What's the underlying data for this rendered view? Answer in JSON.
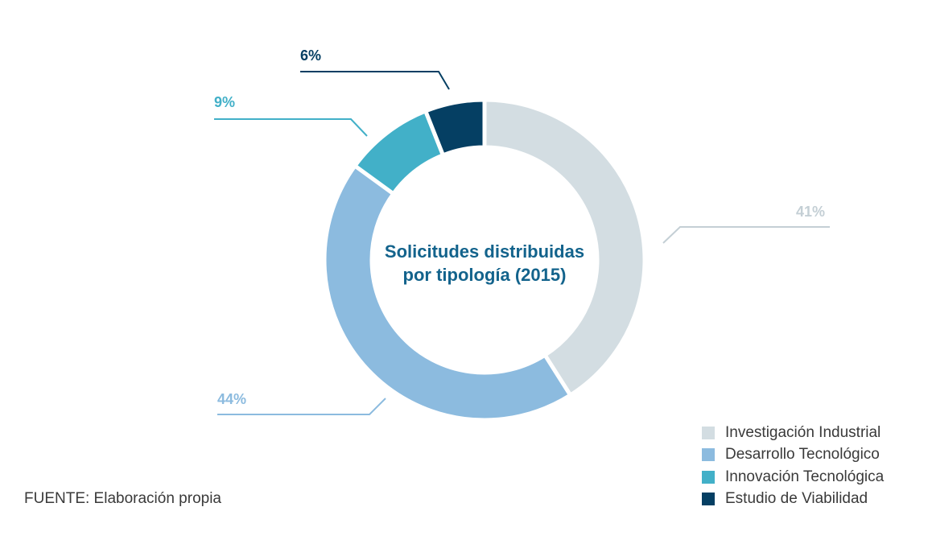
{
  "chart_data": {
    "type": "pie",
    "variant": "donut",
    "title": "Solicitudes distribuidas por tipología (2015)",
    "title_lines": [
      "Solicitudes distribuidas",
      "por tipología (2015)"
    ],
    "series": [
      {
        "name": "Investigación Industrial",
        "value": 41,
        "label": "41%",
        "color": "#d3dde2"
      },
      {
        "name": "Desarrollo Tecnológico",
        "value": 44,
        "label": "44%",
        "color": "#8cbbdf"
      },
      {
        "name": "Innovación Tecnológica",
        "value": 9,
        "label": "9%",
        "color": "#42b0c8"
      },
      {
        "name": "Estudio de Viabilidad",
        "value": 6,
        "label": "6%",
        "color": "#053f63"
      }
    ],
    "legend_position": "bottom-right",
    "start_angle": "top",
    "direction": "clockwise"
  },
  "source": "FUENTE: Elaboración propia",
  "colors": {
    "title": "#13638c",
    "text": "#3a3a3a",
    "background": "#ffffff"
  }
}
